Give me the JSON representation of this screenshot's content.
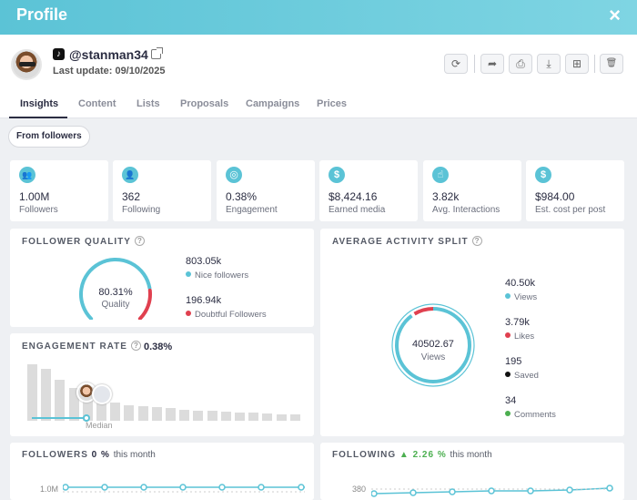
{
  "window": {
    "title": "Profile",
    "close_icon": "×"
  },
  "profile": {
    "handle": "@stanman34",
    "platform_icon": "tiktok-icon",
    "last_update": "Last update: 09/10/2025"
  },
  "actions": {
    "refresh": "⟳",
    "share": "➦",
    "print": "⎙",
    "download": "⤓",
    "add": "⊞",
    "delete": "🗑"
  },
  "tabs": [
    "Insights",
    "Content",
    "Lists",
    "Proposals",
    "Campaigns",
    "Prices"
  ],
  "filter": {
    "label": "From followers"
  },
  "stats": [
    {
      "icon": "users-icon",
      "glyph": "👥",
      "value": "1.00M",
      "label": "Followers"
    },
    {
      "icon": "user-icon",
      "glyph": "👤",
      "value": "362",
      "label": "Following"
    },
    {
      "icon": "target-icon",
      "glyph": "◎",
      "value": "0.38%",
      "label": "Engagement"
    },
    {
      "icon": "dollar-icon",
      "glyph": "$",
      "value": "$8,424.16",
      "label": "Earned media"
    },
    {
      "icon": "hand-icon",
      "glyph": "☝",
      "value": "3.82k",
      "label": "Avg. Interactions"
    },
    {
      "icon": "dollar-icon",
      "glyph": "$",
      "value": "$984.00",
      "label": "Est. cost per post"
    }
  ],
  "follower_quality": {
    "title": "FOLLOWER QUALITY",
    "percent": "80.31%",
    "percent_label": "Quality",
    "quality_fraction": 0.8031,
    "nice_value": "803.05k",
    "nice_label": "Nice followers",
    "doubtful_value": "196.94k",
    "doubtful_label": "Doubtful Followers",
    "colors": {
      "nice": "#5bc3d6",
      "doubtful": "#e0404f"
    }
  },
  "activity_split": {
    "title": "AVERAGE ACTIVITY SPLIT",
    "center_value": "40502.67",
    "center_label": "Views",
    "items": [
      {
        "value": "40.50k",
        "label": "Views",
        "color": "#5bc3d6"
      },
      {
        "value": "3.79k",
        "label": "Likes",
        "color": "#e0404f"
      },
      {
        "value": "195",
        "label": "Saved",
        "color": "#111111"
      },
      {
        "value": "34",
        "label": "Comments",
        "color": "#4caf50"
      }
    ]
  },
  "engagement_rate": {
    "title": "ENGAGEMENT RATE",
    "value": "0.38%",
    "median_label": "Median",
    "bars": [
      1.0,
      0.92,
      0.72,
      0.58,
      0.46,
      0.38,
      0.32,
      0.28,
      0.26,
      0.24,
      0.22,
      0.2,
      0.18,
      0.17,
      0.16,
      0.15,
      0.14,
      0.13,
      0.12,
      0.11
    ],
    "median_index": 5
  },
  "followers_chart": {
    "title": "FOLLOWERS",
    "change": "0 %",
    "suffix": "this month",
    "tick": "1.0M"
  },
  "following_chart": {
    "title": "FOLLOWING",
    "change": "2.26 %",
    "suffix": "this month",
    "tick": "380",
    "up_color": "#4caf50"
  }
}
